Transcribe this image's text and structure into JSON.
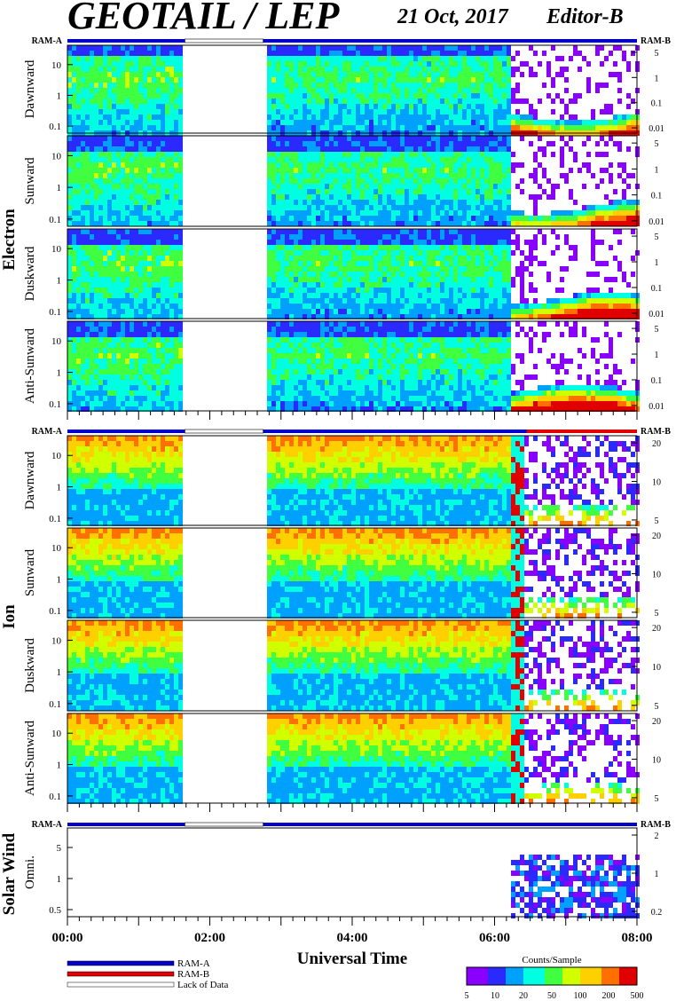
{
  "header": {
    "title": "GEOTAIL / LEP",
    "date": "21 Oct, 2017",
    "editor": "Editor-B"
  },
  "colors": {
    "ram_a": "#0000c8",
    "ram_b": "#e00000",
    "lack": "#ffffff",
    "colorbar": [
      "#8a00ff",
      "#2a2aff",
      "#00a0ff",
      "#00ffe0",
      "#40ff40",
      "#d0ff00",
      "#ffd000",
      "#ff7000",
      "#e00000"
    ]
  },
  "chart_data": {
    "type": "heatmap",
    "xlabel": "Universal Time",
    "x_ticks": [
      "00:00",
      "02:00",
      "04:00",
      "06:00",
      "08:00"
    ],
    "x_range_hours": [
      0,
      8
    ],
    "lack_of_data_hours": [
      1.65,
      2.75
    ],
    "ram_b_hours": [
      6.45,
      8.0
    ],
    "groups": [
      {
        "name": "Electron",
        "ram_left": "RAM-A",
        "ram_right": "RAM-B",
        "left_ticks": [
          "10",
          "1",
          "0.1"
        ],
        "right_ticks": [
          "5",
          "1",
          "0.1",
          "0.01"
        ],
        "panels": [
          "Dawnward",
          "Sunward",
          "Duskward",
          "Anti-Sunward"
        ]
      },
      {
        "name": "Ion",
        "ram_left": "RAM-A",
        "ram_right": "RAM-B",
        "left_ticks": [
          "10",
          "1",
          "0.1"
        ],
        "right_ticks": [
          "20",
          "10",
          "5"
        ],
        "panels": [
          "Dawnward",
          "Sunward",
          "Duskward",
          "Anti-Sunward"
        ]
      },
      {
        "name": "Solar Wind",
        "ram_left": "RAM-A",
        "ram_right": "RAM-B",
        "left_ticks": [
          "5",
          "1",
          "0.5"
        ],
        "right_ticks": [
          "2",
          "1",
          "0.2"
        ],
        "panels": [
          "Omni."
        ]
      }
    ],
    "colorbar": {
      "title": "Counts/Sample",
      "ticks": [
        "5",
        "10",
        "20",
        "50",
        "100",
        "200",
        "500"
      ]
    },
    "legend": [
      "RAM-A",
      "RAM-B",
      "Lack of Data"
    ]
  }
}
